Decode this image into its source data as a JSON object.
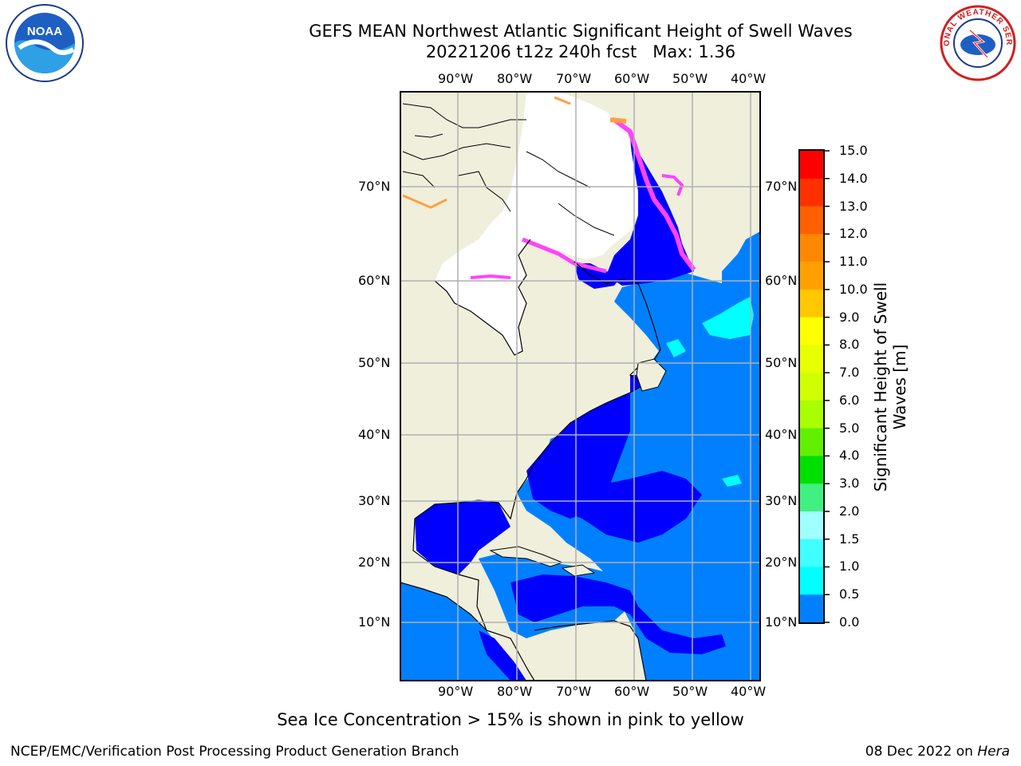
{
  "header": {
    "title_line1": "GEFS MEAN Northwest Atlantic Significant Height of Swell Waves",
    "title_line2": "20221206 t12z 240h fcst   Max: 1.36"
  },
  "logos": {
    "left": "NOAA",
    "right": "NATIONAL WEATHER SERVICE"
  },
  "map": {
    "lon_labels": [
      "90°W",
      "80°W",
      "70°W",
      "60°W",
      "50°W",
      "40°W"
    ],
    "lat_labels": [
      "70°N",
      "60°N",
      "50°N",
      "40°N",
      "30°N",
      "20°N",
      "10°N"
    ],
    "colors": {
      "land": "#efefdc",
      "ice_land": "#ffffff",
      "ocean_low": "#0000ff",
      "ocean_mid": "#0080ff",
      "swell_cyan": "#00ffff",
      "ice_pink": "#ff44ff",
      "ice_orange": "#ffa040",
      "grid": "#b0b0b0"
    }
  },
  "colorbar": {
    "label_line1": "Significant Height of Swell",
    "label_line2": "Waves [m]",
    "ticks": [
      "15.0",
      "14.0",
      "13.0",
      "12.0",
      "11.0",
      "10.0",
      "9.0",
      "8.0",
      "7.0",
      "6.0",
      "5.0",
      "4.0",
      "3.0",
      "2.0",
      "1.5",
      "1.0",
      "0.5",
      "0.0"
    ],
    "bin_colors": [
      "#ff0000",
      "#ff3000",
      "#ff6000",
      "#ff8800",
      "#ffa000",
      "#ffc800",
      "#ffff00",
      "#e8ff00",
      "#d0ff00",
      "#a8ff00",
      "#60f000",
      "#00e000",
      "#40f080",
      "#a0ffff",
      "#40ffff",
      "#00ffff",
      "#0080ff",
      "#0000ff"
    ]
  },
  "caption": "Sea Ice Concentration > 15% is shown in pink to yellow",
  "footer": {
    "left": "NCEP/EMC/Verification Post Processing Product Generation Branch",
    "date": "08 Dec 2022 on",
    "host": "Hera"
  }
}
